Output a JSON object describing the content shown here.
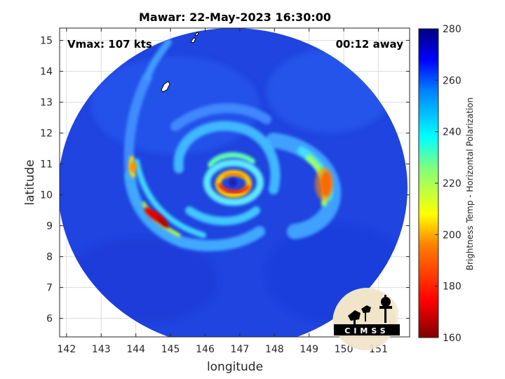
{
  "chart_data": {
    "type": "heatmap",
    "title": "Mawar: 22-May-2023 16:30:00",
    "xlabel": "longitude",
    "ylabel": "latitude",
    "xlim": [
      141.8,
      151.9
    ],
    "ylim": [
      5.4,
      15.4
    ],
    "x_ticks": [
      142,
      143,
      144,
      145,
      146,
      147,
      148,
      149,
      150,
      151
    ],
    "y_ticks": [
      6,
      7,
      8,
      9,
      10,
      11,
      12,
      13,
      14,
      15
    ],
    "grid": true,
    "storm_center": {
      "lon": 146.8,
      "lat": 10.4
    },
    "annotations": {
      "vmax": "Vmax: 107 kts",
      "time_offset": "00:12 away"
    },
    "colorbar": {
      "label": "Brightness Temp - Horizontal Polarization",
      "min": 160,
      "max": 280,
      "ticks": [
        160,
        180,
        200,
        220,
        240,
        260,
        280
      ]
    },
    "colormap": "jet"
  },
  "logo": {
    "text": "CIMSS"
  }
}
